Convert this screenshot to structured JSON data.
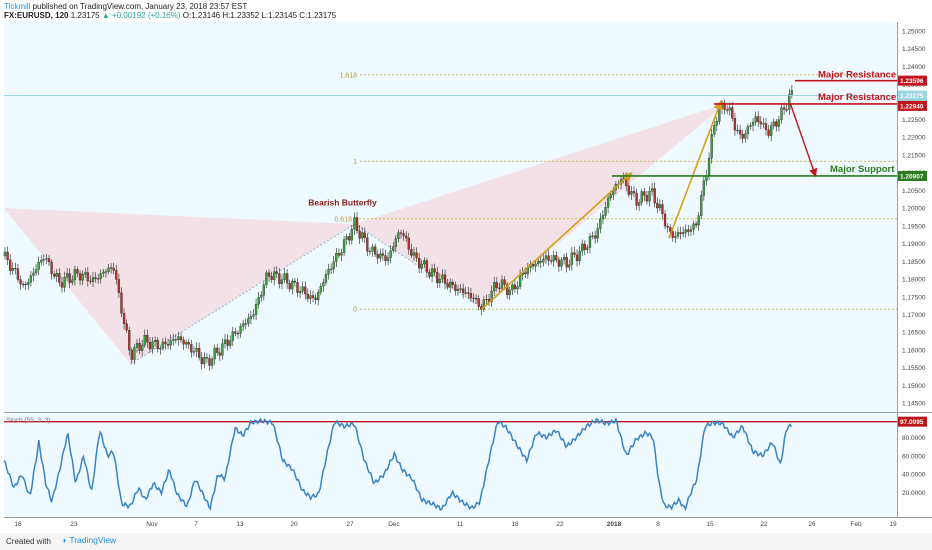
{
  "header": {
    "author": "Tickmill",
    "published": "published on TradingView.com, January 23, 2018 23:57 EST",
    "symbol": "FX:EURUSD, 120",
    "last": "1.23175",
    "change": "+0.00192 (+0.16%)",
    "ohlc": "O:1.23146 H:1.23352 L:1.23145 C:1.23175"
  },
  "footer": {
    "created_with": "Created with",
    "brand": "TradingView"
  },
  "colors": {
    "background": "#eefaff",
    "candle_up": "#3d9e3d",
    "candle_down": "#b0342c",
    "pattern_fill": "#f2dde3",
    "arrow": "#d4a017",
    "resistance": "#c0141c",
    "support": "#2b7a1e",
    "stoch": "#3a82c4",
    "fib": "#c8b042"
  },
  "chart_data": [
    {
      "type": "candlestick",
      "symbol": "FX:EURUSD",
      "timeframe": "120",
      "yaxis_ticks": [
        "1.25000",
        "1.24500",
        "1.24000",
        "1.23500",
        "1.23000",
        "1.22500",
        "1.22000",
        "1.21500",
        "1.21000",
        "1.20500",
        "1.20000",
        "1.19500",
        "1.19000",
        "1.18500",
        "1.18000",
        "1.17500",
        "1.17000",
        "1.16500",
        "1.16000",
        "1.15500",
        "1.15000",
        "1.14500"
      ],
      "ylim": [
        1.1425,
        1.2525
      ],
      "xaxis_ticks": [
        "16",
        "23",
        "Nov",
        "7",
        "13",
        "20",
        "27",
        "Dec",
        "11",
        "18",
        "22",
        "2018",
        "8",
        "15",
        "22",
        "26",
        "Feb",
        "19"
      ],
      "price_path": [
        {
          "t": 0,
          "p": 1.1865
        },
        {
          "t": 12,
          "p": 1.1815
        },
        {
          "t": 20,
          "p": 1.1775
        },
        {
          "t": 30,
          "p": 1.182
        },
        {
          "t": 40,
          "p": 1.1865
        },
        {
          "t": 55,
          "p": 1.179
        },
        {
          "t": 75,
          "p": 1.1815
        },
        {
          "t": 90,
          "p": 1.1795
        },
        {
          "t": 100,
          "p": 1.182
        },
        {
          "t": 110,
          "p": 1.1835
        },
        {
          "t": 118,
          "p": 1.1715
        },
        {
          "t": 127,
          "p": 1.1585
        },
        {
          "t": 140,
          "p": 1.1625
        },
        {
          "t": 158,
          "p": 1.161
        },
        {
          "t": 175,
          "p": 1.1635
        },
        {
          "t": 190,
          "p": 1.16
        },
        {
          "t": 203,
          "p": 1.1563
        },
        {
          "t": 218,
          "p": 1.1605
        },
        {
          "t": 235,
          "p": 1.1655
        },
        {
          "t": 250,
          "p": 1.17
        },
        {
          "t": 265,
          "p": 1.1815
        },
        {
          "t": 280,
          "p": 1.18
        },
        {
          "t": 295,
          "p": 1.1775
        },
        {
          "t": 312,
          "p": 1.174
        },
        {
          "t": 325,
          "p": 1.182
        },
        {
          "t": 340,
          "p": 1.189
        },
        {
          "t": 352,
          "p": 1.1955
        },
        {
          "t": 368,
          "p": 1.188
        },
        {
          "t": 385,
          "p": 1.1855
        },
        {
          "t": 398,
          "p": 1.194
        },
        {
          "t": 412,
          "p": 1.186
        },
        {
          "t": 430,
          "p": 1.1815
        },
        {
          "t": 450,
          "p": 1.178
        },
        {
          "t": 468,
          "p": 1.1755
        },
        {
          "t": 480,
          "p": 1.172
        },
        {
          "t": 496,
          "p": 1.179
        },
        {
          "t": 510,
          "p": 1.1765
        },
        {
          "t": 525,
          "p": 1.183
        },
        {
          "t": 545,
          "p": 1.186
        },
        {
          "t": 565,
          "p": 1.1845
        },
        {
          "t": 580,
          "p": 1.188
        },
        {
          "t": 595,
          "p": 1.193
        },
        {
          "t": 608,
          "p": 1.2035
        },
        {
          "t": 620,
          "p": 1.2085
        },
        {
          "t": 635,
          "p": 1.202
        },
        {
          "t": 650,
          "p": 1.2045
        },
        {
          "t": 660,
          "p": 1.199
        },
        {
          "t": 670,
          "p": 1.192
        },
        {
          "t": 685,
          "p": 1.1935
        },
        {
          "t": 695,
          "p": 1.195
        },
        {
          "t": 705,
          "p": 1.2095
        },
        {
          "t": 715,
          "p": 1.226
        },
        {
          "t": 725,
          "p": 1.2295
        },
        {
          "t": 740,
          "p": 1.2195
        },
        {
          "t": 755,
          "p": 1.2255
        },
        {
          "t": 768,
          "p": 1.2215
        },
        {
          "t": 780,
          "p": 1.226
        },
        {
          "t": 790,
          "p": 1.2318
        }
      ],
      "stoch": {
        "label": "Stoch (55, 3, 3)",
        "ylim": [
          0,
          100
        ],
        "yaxis_ticks": [
          "80.0000",
          "60.0000",
          "40.0000",
          "20.0000"
        ],
        "level_label": "97.0995",
        "level": 97.1,
        "path": [
          {
            "t": 0,
            "v": 55
          },
          {
            "t": 10,
            "v": 25
          },
          {
            "t": 18,
            "v": 40
          },
          {
            "t": 26,
            "v": 15
          },
          {
            "t": 35,
            "v": 75
          },
          {
            "t": 42,
            "v": 30
          },
          {
            "t": 48,
            "v": 10
          },
          {
            "t": 56,
            "v": 45
          },
          {
            "t": 64,
            "v": 85
          },
          {
            "t": 72,
            "v": 30
          },
          {
            "t": 80,
            "v": 60
          },
          {
            "t": 88,
            "v": 20
          },
          {
            "t": 96,
            "v": 88
          },
          {
            "t": 104,
            "v": 60
          },
          {
            "t": 110,
            "v": 65
          },
          {
            "t": 118,
            "v": 8
          },
          {
            "t": 127,
            "v": 5
          },
          {
            "t": 135,
            "v": 25
          },
          {
            "t": 142,
            "v": 12
          },
          {
            "t": 150,
            "v": 30
          },
          {
            "t": 158,
            "v": 20
          },
          {
            "t": 166,
            "v": 45
          },
          {
            "t": 174,
            "v": 18
          },
          {
            "t": 184,
            "v": 5
          },
          {
            "t": 192,
            "v": 35
          },
          {
            "t": 200,
            "v": 18
          },
          {
            "t": 207,
            "v": 3
          },
          {
            "t": 215,
            "v": 40
          },
          {
            "t": 222,
            "v": 35
          },
          {
            "t": 232,
            "v": 90
          },
          {
            "t": 240,
            "v": 82
          },
          {
            "t": 248,
            "v": 96
          },
          {
            "t": 258,
            "v": 98
          },
          {
            "t": 270,
            "v": 96
          },
          {
            "t": 280,
            "v": 55
          },
          {
            "t": 290,
            "v": 45
          },
          {
            "t": 300,
            "v": 22
          },
          {
            "t": 308,
            "v": 15
          },
          {
            "t": 316,
            "v": 18
          },
          {
            "t": 324,
            "v": 60
          },
          {
            "t": 332,
            "v": 97
          },
          {
            "t": 342,
            "v": 92
          },
          {
            "t": 352,
            "v": 95
          },
          {
            "t": 362,
            "v": 55
          },
          {
            "t": 372,
            "v": 30
          },
          {
            "t": 382,
            "v": 40
          },
          {
            "t": 392,
            "v": 62
          },
          {
            "t": 400,
            "v": 45
          },
          {
            "t": 410,
            "v": 35
          },
          {
            "t": 420,
            "v": 12
          },
          {
            "t": 430,
            "v": 8
          },
          {
            "t": 440,
            "v": 2
          },
          {
            "t": 450,
            "v": 20
          },
          {
            "t": 460,
            "v": 10
          },
          {
            "t": 470,
            "v": 3
          },
          {
            "t": 478,
            "v": 10
          },
          {
            "t": 488,
            "v": 60
          },
          {
            "t": 496,
            "v": 98
          },
          {
            "t": 505,
            "v": 90
          },
          {
            "t": 515,
            "v": 72
          },
          {
            "t": 525,
            "v": 55
          },
          {
            "t": 535,
            "v": 85
          },
          {
            "t": 545,
            "v": 80
          },
          {
            "t": 555,
            "v": 88
          },
          {
            "t": 565,
            "v": 70
          },
          {
            "t": 575,
            "v": 80
          },
          {
            "t": 585,
            "v": 92
          },
          {
            "t": 595,
            "v": 99
          },
          {
            "t": 605,
            "v": 95
          },
          {
            "t": 615,
            "v": 98
          },
          {
            "t": 625,
            "v": 60
          },
          {
            "t": 635,
            "v": 78
          },
          {
            "t": 645,
            "v": 85
          },
          {
            "t": 652,
            "v": 80
          },
          {
            "t": 658,
            "v": 30
          },
          {
            "t": 663,
            "v": 6
          },
          {
            "t": 670,
            "v": 4
          },
          {
            "t": 678,
            "v": 12
          },
          {
            "t": 684,
            "v": 2
          },
          {
            "t": 690,
            "v": 20
          },
          {
            "t": 696,
            "v": 35
          },
          {
            "t": 704,
            "v": 92
          },
          {
            "t": 712,
            "v": 96
          },
          {
            "t": 722,
            "v": 95
          },
          {
            "t": 732,
            "v": 80
          },
          {
            "t": 742,
            "v": 92
          },
          {
            "t": 752,
            "v": 65
          },
          {
            "t": 762,
            "v": 60
          },
          {
            "t": 772,
            "v": 75
          },
          {
            "t": 780,
            "v": 50
          },
          {
            "t": 786,
            "v": 90
          },
          {
            "t": 792,
            "v": 94
          }
        ]
      },
      "fib_levels": [
        {
          "label": "1.618",
          "price": 1.2376
        },
        {
          "label": "1",
          "price": 1.2132
        },
        {
          "label": "0.618",
          "price": 1.197
        },
        {
          "label": "0",
          "price": 1.1715
        }
      ],
      "annotations": [
        {
          "label": "Major Resistance",
          "price": 1.23596,
          "price_label": "1.23596"
        },
        {
          "label": "Major Resistance",
          "price": 1.2294,
          "price_label": "1.22940"
        },
        {
          "label": "Major Support",
          "price": 1.20907,
          "price_label": "1.20907"
        },
        {
          "label": "Bearish Butterfly"
        }
      ],
      "last_price_label": "1.23175",
      "countdown_label": "01:03:03"
    }
  ]
}
